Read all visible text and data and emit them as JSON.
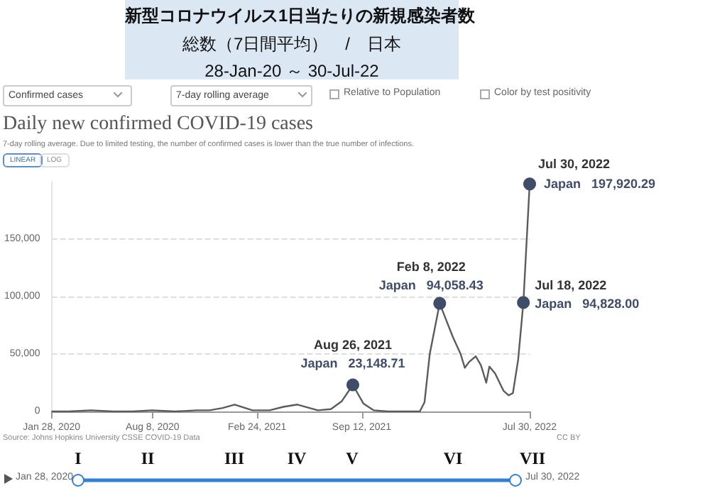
{
  "chart_data": {
    "type": "line",
    "title": "新型コロナウイルス1日当たりの新規感染者数",
    "subtitle": "総数（7日間平均）　/　日本",
    "x": [
      "2020-01-28",
      "2020-03-01",
      "2020-04-12",
      "2020-05-25",
      "2020-07-01",
      "2020-08-07",
      "2020-09-20",
      "2020-11-01",
      "2020-11-25",
      "2020-12-20",
      "2021-01-12",
      "2021-02-15",
      "2021-03-20",
      "2021-04-15",
      "2021-05-12",
      "2021-06-20",
      "2021-07-15",
      "2021-08-05",
      "2021-08-26",
      "2021-09-15",
      "2021-10-05",
      "2021-11-01",
      "2021-12-15",
      "2022-01-01",
      "2022-01-10",
      "2022-01-20",
      "2022-02-08",
      "2022-02-20",
      "2022-03-05",
      "2022-03-20",
      "2022-03-28",
      "2022-04-05",
      "2022-04-18",
      "2022-04-28",
      "2022-05-08",
      "2022-05-14",
      "2022-05-25",
      "2022-06-10",
      "2022-06-20",
      "2022-06-28",
      "2022-07-08",
      "2022-07-18",
      "2022-07-30"
    ],
    "series": [
      {
        "color": "#5b5b5b",
        "values": [
          0,
          0,
          1000,
          0,
          0,
          1000,
          0,
          1000,
          1000,
          3000,
          6000,
          1000,
          1000,
          4000,
          6000,
          1000,
          2000,
          9000,
          23148.71,
          7000,
          1000,
          0,
          0,
          0,
          8000,
          50000,
          94058.43,
          80000,
          65000,
          50000,
          38000,
          43000,
          48000,
          40000,
          25000,
          39000,
          33000,
          18000,
          14000,
          16000,
          45000,
          94828,
          197920.29
        ]
      }
    ],
    "xlim": [
      "2020-01-28",
      "2022-07-30"
    ],
    "xticks": [
      {
        "value": "2020-01-28",
        "label": "Jan 28, 2020"
      },
      {
        "value": "2020-08-08",
        "label": "Aug 8, 2020"
      },
      {
        "value": "2021-02-24",
        "label": "Feb 24, 2021"
      },
      {
        "value": "2021-09-12",
        "label": "Sep 12, 2021"
      },
      {
        "value": "2022-07-30",
        "label": "Jul 30, 2022"
      }
    ],
    "yticks": [
      0,
      {
        "value": 50000,
        "label": "50,000"
      },
      {
        "value": 100000,
        "label": "100,000"
      },
      {
        "value": 150000,
        "label": "150,000"
      }
    ],
    "ylim": [
      0,
      200000
    ],
    "grid": "y",
    "annotations": [
      "28-Jan-20 ～ 30-Jul-22",
      "Confirmed cases",
      "7-day rolling average",
      "Relative to Population",
      "Color by test positivity",
      "Daily new confirmed COVID-19 cases",
      "7-day rolling average. Due to limited testing, the number of confirmed cases is lower than the true number of infections.",
      "LINEAR",
      "LOG",
      "Source: Johns Hopkins University CSSE COVID-19 Data",
      "CC BY",
      "Jan 28, 2020",
      "Jul 30, 2022",
      "I",
      "II",
      "III",
      "IV",
      "V",
      "VI",
      "VII",
      {
        "text": "Aug 26, 2021",
        "x": "2021-08-26",
        "y": 23148.71
      },
      {
        "text": "Japan   23,148.71",
        "x": "2021-08-26",
        "y": 23148.71
      },
      {
        "text": "Feb 8, 2022",
        "x": "2022-02-08",
        "y": 94058.43
      },
      {
        "text": "Japan   94,058.43",
        "x": "2022-02-08",
        "y": 94058.43
      },
      {
        "text": "Jul 18, 2022",
        "x": "2022-07-18",
        "y": 94828
      },
      {
        "text": "Japan   94,828.00",
        "x": "2022-07-18",
        "y": 94828
      },
      {
        "text": "Jul 30, 2022",
        "x": "2022-07-30",
        "y": 197920.29
      },
      {
        "text": "Japan   197,920.29",
        "x": "2022-07-30",
        "y": 197920.29
      }
    ]
  }
}
